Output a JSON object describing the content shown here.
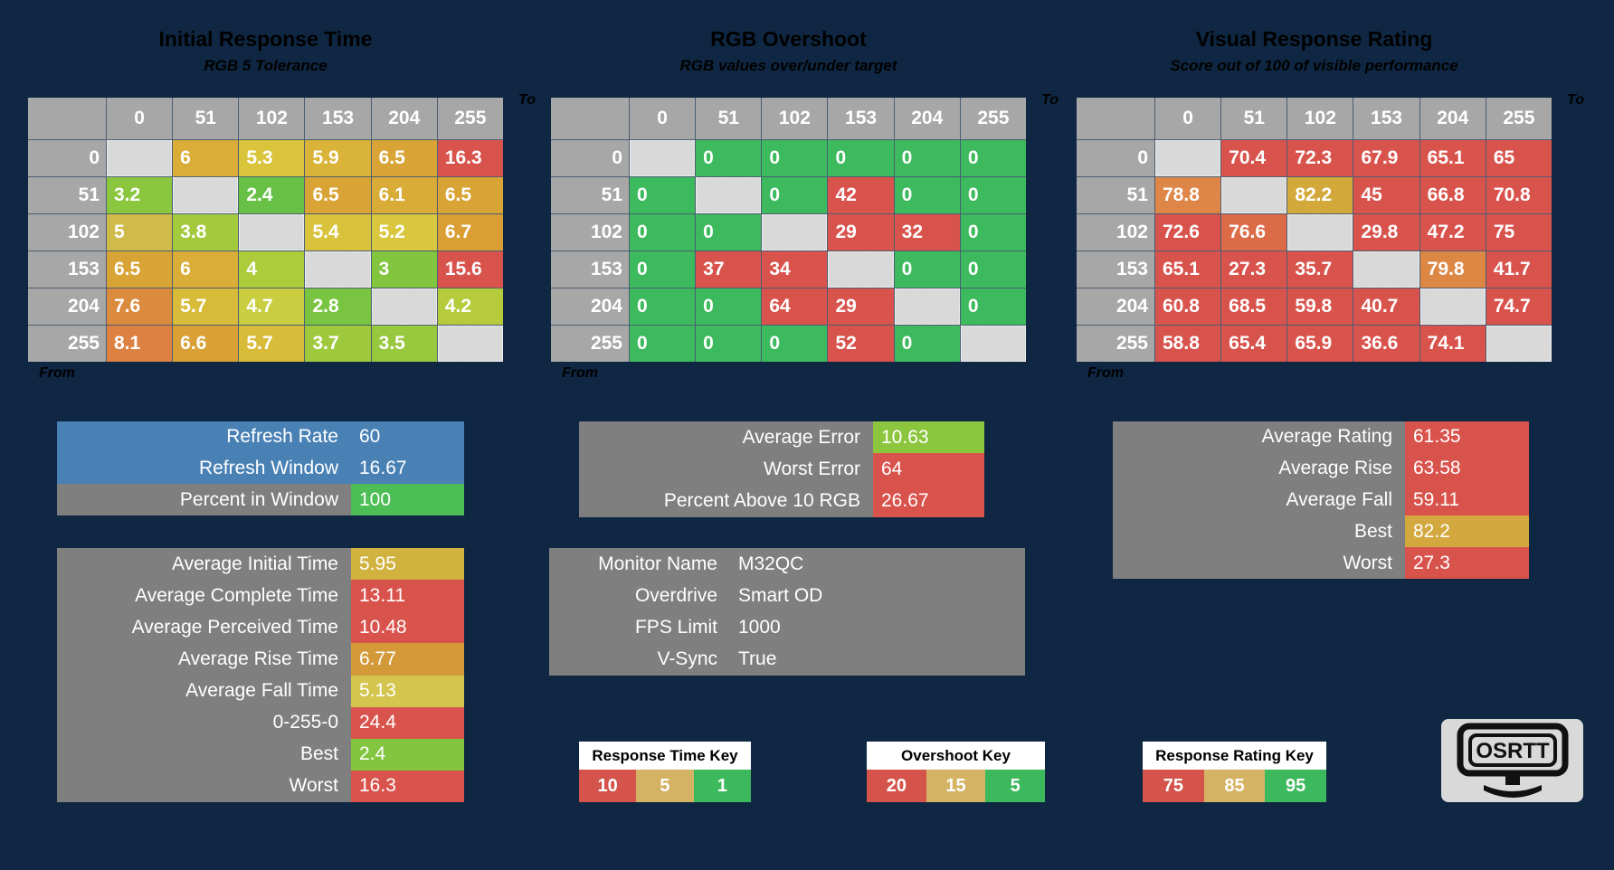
{
  "logo": {
    "text": "OSRTT"
  },
  "palette": {
    "background": "#0f2742",
    "header_gray": "#a7a7a7",
    "diagonal_gray": "#d9d9d9",
    "label_gray": "#7f7f7f",
    "blue": "#4a81b5",
    "red": "#d9534d",
    "green": "#3cba5d",
    "bright_green": "#4dbd56",
    "gold": "#d4a93c",
    "orange": "#dd8647"
  },
  "tables": [
    {
      "title": "Initial Response Time",
      "subtitle": "RGB 5 Tolerance",
      "axis_to": "To",
      "axis_from": "From",
      "columns": [
        "0",
        "51",
        "102",
        "153",
        "204",
        "255"
      ],
      "rows": [
        "0",
        "51",
        "102",
        "153",
        "204",
        "255"
      ],
      "cells": [
        [
          null,
          {
            "v": "6",
            "bg": "#d9ad37"
          },
          {
            "v": "5.3",
            "bg": "#d9c43c"
          },
          {
            "v": "5.9",
            "bg": "#d9b439"
          },
          {
            "v": "6.5",
            "bg": "#d9a436"
          },
          {
            "v": "16.3",
            "bg": "#d9534d"
          }
        ],
        [
          {
            "v": "3.2",
            "bg": "#8ac63e"
          },
          null,
          {
            "v": "2.4",
            "bg": "#68c146"
          },
          {
            "v": "6.5",
            "bg": "#d9a436"
          },
          {
            "v": "6.1",
            "bg": "#d9ab37"
          },
          {
            "v": "6.5",
            "bg": "#d9a436"
          }
        ],
        [
          {
            "v": "5",
            "bg": "#d0bb4a"
          },
          {
            "v": "3.8",
            "bg": "#a3ca3c"
          },
          null,
          {
            "v": "5.4",
            "bg": "#d9c23c"
          },
          {
            "v": "5.2",
            "bg": "#d9c73e"
          },
          {
            "v": "6.7",
            "bg": "#d99e34"
          }
        ],
        [
          {
            "v": "6.5",
            "bg": "#d9a436"
          },
          {
            "v": "6",
            "bg": "#d9ad37"
          },
          {
            "v": "4",
            "bg": "#adcb3b"
          },
          null,
          {
            "v": "3",
            "bg": "#82c53f"
          },
          {
            "v": "15.6",
            "bg": "#d9534d"
          }
        ],
        [
          {
            "v": "7.6",
            "bg": "#db8b3e"
          },
          {
            "v": "5.7",
            "bg": "#d9bb3a"
          },
          {
            "v": "4.7",
            "bg": "#c9cd3f"
          },
          {
            "v": "2.8",
            "bg": "#79c441"
          },
          null,
          {
            "v": "4.2",
            "bg": "#b5cb3b"
          }
        ],
        [
          {
            "v": "8.1",
            "bg": "#dc8142"
          },
          {
            "v": "6.6",
            "bg": "#d9a135"
          },
          {
            "v": "5.7",
            "bg": "#d9bb3a"
          },
          {
            "v": "3.7",
            "bg": "#9fc93d"
          },
          {
            "v": "3.5",
            "bg": "#97c83d"
          },
          null
        ]
      ]
    },
    {
      "title": "RGB Overshoot",
      "subtitle": "RGB values over/under target",
      "axis_to": "To",
      "axis_from": "From",
      "columns": [
        "0",
        "51",
        "102",
        "153",
        "204",
        "255"
      ],
      "rows": [
        "0",
        "51",
        "102",
        "153",
        "204",
        "255"
      ],
      "cells": [
        [
          null,
          {
            "v": "0",
            "bg": "#3cba5d"
          },
          {
            "v": "0",
            "bg": "#3cba5d"
          },
          {
            "v": "0",
            "bg": "#3cba5d"
          },
          {
            "v": "0",
            "bg": "#3cba5d"
          },
          {
            "v": "0",
            "bg": "#3cba5d"
          }
        ],
        [
          {
            "v": "0",
            "bg": "#3cba5d"
          },
          null,
          {
            "v": "0",
            "bg": "#3cba5d"
          },
          {
            "v": "42",
            "bg": "#d9534d"
          },
          {
            "v": "0",
            "bg": "#3cba5d"
          },
          {
            "v": "0",
            "bg": "#3cba5d"
          }
        ],
        [
          {
            "v": "0",
            "bg": "#3cba5d"
          },
          {
            "v": "0",
            "bg": "#3cba5d"
          },
          null,
          {
            "v": "29",
            "bg": "#d9534d"
          },
          {
            "v": "32",
            "bg": "#d9534d"
          },
          {
            "v": "0",
            "bg": "#3cba5d"
          }
        ],
        [
          {
            "v": "0",
            "bg": "#3cba5d"
          },
          {
            "v": "37",
            "bg": "#d9534d"
          },
          {
            "v": "34",
            "bg": "#d9534d"
          },
          null,
          {
            "v": "0",
            "bg": "#3cba5d"
          },
          {
            "v": "0",
            "bg": "#3cba5d"
          }
        ],
        [
          {
            "v": "0",
            "bg": "#3cba5d"
          },
          {
            "v": "0",
            "bg": "#3cba5d"
          },
          {
            "v": "64",
            "bg": "#d9534d"
          },
          {
            "v": "29",
            "bg": "#d9534d"
          },
          null,
          {
            "v": "0",
            "bg": "#3cba5d"
          }
        ],
        [
          {
            "v": "0",
            "bg": "#3cba5d"
          },
          {
            "v": "0",
            "bg": "#3cba5d"
          },
          {
            "v": "0",
            "bg": "#3cba5d"
          },
          {
            "v": "52",
            "bg": "#d9534d"
          },
          {
            "v": "0",
            "bg": "#3cba5d"
          },
          null
        ]
      ]
    },
    {
      "title": "Visual Response Rating",
      "subtitle": "Score out of 100 of visible performance",
      "axis_to": "To",
      "axis_from": "From",
      "columns": [
        "0",
        "51",
        "102",
        "153",
        "204",
        "255"
      ],
      "rows": [
        "0",
        "51",
        "102",
        "153",
        "204",
        "255"
      ],
      "cells": [
        [
          null,
          {
            "v": "70.4",
            "bg": "#d9534d"
          },
          {
            "v": "72.3",
            "bg": "#d9534d"
          },
          {
            "v": "67.9",
            "bg": "#d9534d"
          },
          {
            "v": "65.1",
            "bg": "#d9534d"
          },
          {
            "v": "65",
            "bg": "#d9534d"
          }
        ],
        [
          {
            "v": "78.8",
            "bg": "#dd8647"
          },
          null,
          {
            "v": "82.2",
            "bg": "#d4a93c"
          },
          {
            "v": "45",
            "bg": "#d9534d"
          },
          {
            "v": "66.8",
            "bg": "#d9534d"
          },
          {
            "v": "70.8",
            "bg": "#d9534d"
          }
        ],
        [
          {
            "v": "72.6",
            "bg": "#d9534d"
          },
          {
            "v": "76.6",
            "bg": "#dc6b48"
          },
          null,
          {
            "v": "29.8",
            "bg": "#d9534d"
          },
          {
            "v": "47.2",
            "bg": "#d9534d"
          },
          {
            "v": "75",
            "bg": "#d9534d"
          }
        ],
        [
          {
            "v": "65.1",
            "bg": "#d9534d"
          },
          {
            "v": "27.3",
            "bg": "#d9534d"
          },
          {
            "v": "35.7",
            "bg": "#d9534d"
          },
          null,
          {
            "v": "79.8",
            "bg": "#dd8745"
          },
          {
            "v": "41.7",
            "bg": "#d9534d"
          }
        ],
        [
          {
            "v": "60.8",
            "bg": "#d9534d"
          },
          {
            "v": "68.5",
            "bg": "#d9534d"
          },
          {
            "v": "59.8",
            "bg": "#d9534d"
          },
          {
            "v": "40.7",
            "bg": "#d9534d"
          },
          null,
          {
            "v": "74.7",
            "bg": "#d9534d"
          }
        ],
        [
          {
            "v": "58.8",
            "bg": "#d9534d"
          },
          {
            "v": "65.4",
            "bg": "#d9534d"
          },
          {
            "v": "65.9",
            "bg": "#d9534d"
          },
          {
            "v": "36.6",
            "bg": "#d9534d"
          },
          {
            "v": "74.1",
            "bg": "#d9534d"
          },
          null
        ]
      ]
    }
  ],
  "panels": {
    "refresh": {
      "rows": [
        {
          "label": "Refresh Rate",
          "value": "60",
          "label_bg": "#4a81b5",
          "value_bg": "#4a81b5"
        },
        {
          "label": "Refresh Window",
          "value": "16.67",
          "label_bg": "#4a81b5",
          "value_bg": "#4a81b5"
        },
        {
          "label": "Percent in Window",
          "value": "100",
          "label_bg": "#7f7f7f",
          "value_bg": "#4dbd56"
        }
      ]
    },
    "times": {
      "rows": [
        {
          "label": "Average Initial Time",
          "value": "5.95",
          "label_bg": "#7f7f7f",
          "value_bg": "#d1b23f"
        },
        {
          "label": "Average Complete Time",
          "value": "13.11",
          "label_bg": "#7f7f7f",
          "value_bg": "#d9534d"
        },
        {
          "label": "Average Perceived Time",
          "value": "10.48",
          "label_bg": "#7f7f7f",
          "value_bg": "#d9534d"
        },
        {
          "label": "Average Rise Time",
          "value": "6.77",
          "label_bg": "#7f7f7f",
          "value_bg": "#d49a3a"
        },
        {
          "label": "Average Fall Time",
          "value": "5.13",
          "label_bg": "#7f7f7f",
          "value_bg": "#d3c54e"
        },
        {
          "label": "0-255-0",
          "value": "24.4",
          "label_bg": "#7f7f7f",
          "value_bg": "#d9534d"
        },
        {
          "label": "Best",
          "value": "2.4",
          "label_bg": "#7f7f7f",
          "value_bg": "#82c53e"
        },
        {
          "label": "Worst",
          "value": "16.3",
          "label_bg": "#7f7f7f",
          "value_bg": "#d9534d"
        }
      ]
    },
    "error": {
      "rows": [
        {
          "label": "Average Error",
          "value": "10.63",
          "label_bg": "#7f7f7f",
          "value_bg": "#8cc63e"
        },
        {
          "label": "Worst Error",
          "value": "64",
          "label_bg": "#7f7f7f",
          "value_bg": "#d9534d"
        },
        {
          "label": "Percent Above 10 RGB",
          "value": "26.67",
          "label_bg": "#7f7f7f",
          "value_bg": "#d9534d"
        }
      ]
    },
    "monitor": {
      "rows": [
        {
          "label": "Monitor Name",
          "value": "M32QC",
          "label_bg": "#7f7f7f",
          "value_bg": "#7f7f7f"
        },
        {
          "label": "Overdrive",
          "value": "Smart OD",
          "label_bg": "#7f7f7f",
          "value_bg": "#7f7f7f"
        },
        {
          "label": "FPS Limit",
          "value": "1000",
          "label_bg": "#7f7f7f",
          "value_bg": "#7f7f7f"
        },
        {
          "label": "V-Sync",
          "value": "True",
          "label_bg": "#7f7f7f",
          "value_bg": "#7f7f7f"
        }
      ]
    },
    "rating": {
      "rows": [
        {
          "label": "Average Rating",
          "value": "61.35",
          "label_bg": "#7f7f7f",
          "value_bg": "#d9534d"
        },
        {
          "label": "Average Rise",
          "value": "63.58",
          "label_bg": "#7f7f7f",
          "value_bg": "#d9534d"
        },
        {
          "label": "Average Fall",
          "value": "59.11",
          "label_bg": "#7f7f7f",
          "value_bg": "#d9534d"
        },
        {
          "label": "Best",
          "value": "82.2",
          "label_bg": "#7f7f7f",
          "value_bg": "#d2a83f"
        },
        {
          "label": "Worst",
          "value": "27.3",
          "label_bg": "#7f7f7f",
          "value_bg": "#d9534d"
        }
      ]
    }
  },
  "keys": [
    {
      "title": "Response Time Key",
      "cells": [
        {
          "v": "10",
          "bg": "#d4534b"
        },
        {
          "v": "5",
          "bg": "#d5b364"
        },
        {
          "v": "1",
          "bg": "#3cb95c"
        }
      ]
    },
    {
      "title": "Overshoot Key",
      "cells": [
        {
          "v": "20",
          "bg": "#d4534b"
        },
        {
          "v": "15",
          "bg": "#d5b364"
        },
        {
          "v": "5",
          "bg": "#3cb95c"
        }
      ]
    },
    {
      "title": "Response Rating Key",
      "cells": [
        {
          "v": "75",
          "bg": "#d4534b"
        },
        {
          "v": "85",
          "bg": "#d5b364"
        },
        {
          "v": "95",
          "bg": "#3cb95c"
        }
      ]
    }
  ],
  "chart_data": [
    {
      "type": "heatmap",
      "title": "Initial Response Time",
      "subtitle": "RGB 5 Tolerance",
      "x_label": "To",
      "y_label": "From",
      "categories": [
        0,
        51,
        102,
        153,
        204,
        255
      ],
      "matrix": [
        [
          null,
          6,
          5.3,
          5.9,
          6.5,
          16.3
        ],
        [
          3.2,
          null,
          2.4,
          6.5,
          6.1,
          6.5
        ],
        [
          5,
          3.8,
          null,
          5.4,
          5.2,
          6.7
        ],
        [
          6.5,
          6,
          4,
          null,
          3,
          15.6
        ],
        [
          7.6,
          5.7,
          4.7,
          2.8,
          null,
          4.2
        ],
        [
          8.1,
          6.6,
          5.7,
          3.7,
          3.5,
          null
        ]
      ]
    },
    {
      "type": "heatmap",
      "title": "RGB Overshoot",
      "subtitle": "RGB values over/under target",
      "x_label": "To",
      "y_label": "From",
      "categories": [
        0,
        51,
        102,
        153,
        204,
        255
      ],
      "matrix": [
        [
          null,
          0,
          0,
          0,
          0,
          0
        ],
        [
          0,
          null,
          0,
          42,
          0,
          0
        ],
        [
          0,
          0,
          null,
          29,
          32,
          0
        ],
        [
          0,
          37,
          34,
          null,
          0,
          0
        ],
        [
          0,
          0,
          64,
          29,
          null,
          0
        ],
        [
          0,
          0,
          0,
          52,
          0,
          null
        ]
      ]
    },
    {
      "type": "heatmap",
      "title": "Visual Response Rating",
      "subtitle": "Score out of 100 of visible performance",
      "x_label": "To",
      "y_label": "From",
      "categories": [
        0,
        51,
        102,
        153,
        204,
        255
      ],
      "matrix": [
        [
          null,
          70.4,
          72.3,
          67.9,
          65.1,
          65
        ],
        [
          78.8,
          null,
          82.2,
          45,
          66.8,
          70.8
        ],
        [
          72.6,
          76.6,
          null,
          29.8,
          47.2,
          75
        ],
        [
          65.1,
          27.3,
          35.7,
          null,
          79.8,
          41.7
        ],
        [
          60.8,
          68.5,
          59.8,
          40.7,
          null,
          74.7
        ],
        [
          58.8,
          65.4,
          65.9,
          36.6,
          74.1,
          null
        ]
      ]
    }
  ]
}
